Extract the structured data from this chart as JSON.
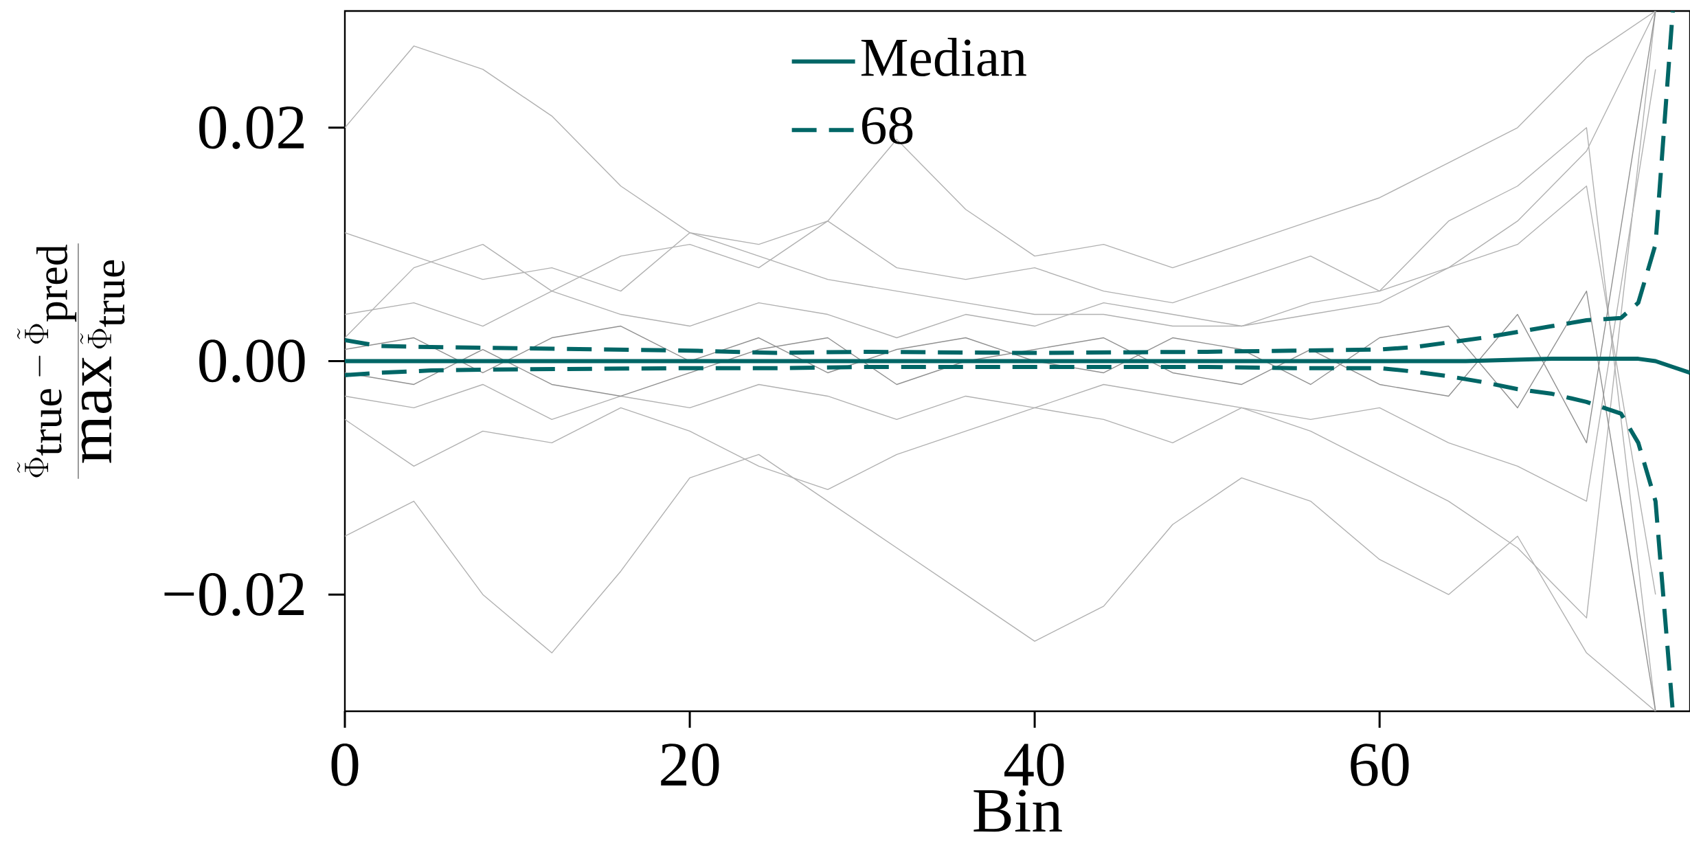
{
  "chart_data": {
    "type": "line",
    "xlabel": "Bin",
    "ylabel": "\\frac{\\tilde{\\Phi}_{\\mathrm{true}}-\\tilde{\\Phi}_{\\mathrm{pred}}}{\\max\\tilde{\\Phi}_{\\mathrm{true}}}",
    "xlim": [
      0,
      78
    ],
    "ylim": [
      -0.03,
      0.03
    ],
    "xticks": [
      0,
      20,
      40,
      60
    ],
    "yticks": [
      {
        "value": -0.02,
        "label": "−0.02"
      },
      {
        "value": 0,
        "label": "0.00"
      },
      {
        "value": 0.02,
        "label": "0.02"
      }
    ],
    "legend": "top",
    "series": [
      {
        "color": "#b0b0b0",
        "x": [
          0,
          4,
          8,
          12,
          16,
          20,
          24,
          28,
          32,
          36,
          40,
          44,
          48,
          52,
          56,
          60,
          64,
          68,
          72,
          76
        ],
        "values": [
          0.02,
          0.027,
          0.025,
          0.021,
          0.015,
          0.011,
          0.009,
          0.007,
          0.006,
          0.005,
          0.004,
          0.004,
          0.003,
          0.003,
          0.004,
          0.005,
          0.008,
          0.012,
          0.018,
          0.03
        ]
      },
      {
        "color": "#b0b0b0",
        "x": [
          0,
          4,
          8,
          12,
          16,
          20,
          24,
          28,
          32,
          36,
          40,
          44,
          48,
          52,
          56,
          60,
          64,
          68,
          72,
          76
        ],
        "values": [
          0.011,
          0.009,
          0.007,
          0.008,
          0.006,
          0.011,
          0.01,
          0.012,
          0.008,
          0.007,
          0.008,
          0.006,
          0.005,
          0.007,
          0.009,
          0.006,
          0.012,
          0.015,
          0.02,
          -0.03
        ]
      },
      {
        "color": "#b0b0b0",
        "x": [
          0,
          4,
          8,
          12,
          16,
          20,
          24,
          28,
          32,
          36,
          40,
          44,
          48,
          52,
          56,
          60,
          64,
          68,
          72,
          76
        ],
        "values": [
          -0.005,
          -0.009,
          -0.006,
          -0.007,
          -0.004,
          -0.006,
          -0.009,
          -0.011,
          -0.008,
          -0.006,
          -0.004,
          -0.005,
          -0.007,
          -0.004,
          -0.006,
          -0.009,
          -0.012,
          -0.016,
          -0.022,
          0.03
        ]
      },
      {
        "color": "#b0b0b0",
        "x": [
          0,
          4,
          8,
          12,
          16,
          20,
          24,
          28,
          32,
          36,
          40,
          44,
          48,
          52,
          56,
          60,
          64,
          68,
          72,
          76
        ],
        "values": [
          0.004,
          0.005,
          0.003,
          0.006,
          0.004,
          0.003,
          0.005,
          0.004,
          0.002,
          0.004,
          0.003,
          0.005,
          0.004,
          0.003,
          0.005,
          0.006,
          0.008,
          0.01,
          0.015,
          -0.02
        ]
      },
      {
        "color": "#b0b0b0",
        "x": [
          0,
          4,
          8,
          12,
          16,
          20,
          24,
          28,
          32,
          36,
          40,
          44,
          48,
          52,
          56,
          60,
          64,
          68,
          72,
          76
        ],
        "values": [
          -0.003,
          -0.004,
          -0.002,
          -0.005,
          -0.003,
          -0.004,
          -0.002,
          -0.003,
          -0.005,
          -0.003,
          -0.004,
          -0.002,
          -0.003,
          -0.004,
          -0.005,
          -0.004,
          -0.007,
          -0.009,
          -0.012,
          0.025
        ]
      },
      {
        "color": "#b0b0b0",
        "x": [
          0,
          4,
          8,
          12,
          16,
          20,
          24,
          28,
          32,
          36,
          40,
          44,
          48,
          52,
          56,
          60,
          64,
          68,
          72,
          76
        ],
        "values": [
          -0.015,
          -0.012,
          -0.02,
          -0.025,
          -0.018,
          -0.01,
          -0.008,
          -0.012,
          -0.016,
          -0.02,
          -0.024,
          -0.021,
          -0.014,
          -0.01,
          -0.012,
          -0.017,
          -0.02,
          -0.015,
          -0.025,
          -0.03
        ]
      },
      {
        "color": "#b0b0b0",
        "x": [
          0,
          4,
          8,
          12,
          16,
          20,
          24,
          28,
          32,
          36,
          40,
          44,
          48,
          52,
          56,
          60,
          64,
          68,
          72,
          76
        ],
        "values": [
          0.002,
          0.008,
          0.01,
          0.006,
          0.009,
          0.01,
          0.008,
          0.012,
          0.019,
          0.013,
          0.009,
          0.01,
          0.008,
          0.01,
          0.012,
          0.014,
          0.017,
          0.02,
          0.026,
          0.03
        ]
      },
      {
        "color": "#909090",
        "x": [
          0,
          4,
          8,
          12,
          16,
          20,
          24,
          28,
          32,
          36,
          40,
          44,
          48,
          52,
          56,
          60,
          64,
          68,
          72,
          76
        ],
        "values": [
          0.001,
          0.002,
          -0.001,
          0.002,
          0.003,
          0.0,
          0.002,
          -0.001,
          0.001,
          0.002,
          0.0,
          -0.001,
          0.002,
          0.001,
          -0.002,
          0.002,
          0.003,
          -0.004,
          0.006,
          -0.03
        ]
      },
      {
        "color": "#909090",
        "x": [
          0,
          4,
          8,
          12,
          16,
          20,
          24,
          28,
          32,
          36,
          40,
          44,
          48,
          52,
          56,
          60,
          64,
          68,
          72,
          76
        ],
        "values": [
          -0.001,
          -0.002,
          0.001,
          -0.002,
          -0.003,
          -0.001,
          0.001,
          0.002,
          -0.002,
          0.0,
          0.001,
          0.002,
          -0.001,
          -0.002,
          0.001,
          -0.002,
          -0.003,
          0.004,
          -0.007,
          0.03
        ]
      },
      {
        "name": "Median",
        "color": "#006666",
        "line_style": "solid",
        "x": [
          0,
          10,
          20,
          30,
          40,
          50,
          60,
          65,
          70,
          72,
          75,
          76,
          77,
          78
        ],
        "values": [
          0,
          0,
          0,
          0,
          0,
          0,
          0,
          0,
          0.0002,
          0.0002,
          0.0002,
          0,
          -0.0005,
          -0.001
        ]
      },
      {
        "name": "68",
        "color": "#006666",
        "line_style": "dashed",
        "x": [
          0,
          2,
          5,
          10,
          20,
          25,
          30,
          40,
          50,
          55,
          60,
          62,
          64,
          66,
          68,
          70,
          72,
          74,
          75,
          76,
          77
        ],
        "values": [
          0.0018,
          0.0013,
          0.0012,
          0.0011,
          0.0009,
          0.0007,
          0.0008,
          0.0007,
          0.0008,
          0.0009,
          0.001,
          0.0012,
          0.0016,
          0.002,
          0.0025,
          0.003,
          0.0035,
          0.0037,
          0.005,
          0.01,
          0.03
        ]
      },
      {
        "color": "#006666",
        "line_style": "dashed",
        "x": [
          0,
          2,
          5,
          10,
          20,
          25,
          30,
          40,
          50,
          55,
          60,
          62,
          64,
          66,
          68,
          70,
          72,
          74,
          75,
          76,
          77
        ],
        "values": [
          -0.0012,
          -0.001,
          -0.0008,
          -0.0007,
          -0.0006,
          -0.0006,
          -0.0005,
          -0.0005,
          -0.0005,
          -0.0006,
          -0.0006,
          -0.0009,
          -0.0013,
          -0.0018,
          -0.0024,
          -0.0028,
          -0.0035,
          -0.0045,
          -0.007,
          -0.012,
          -0.03
        ]
      }
    ]
  }
}
